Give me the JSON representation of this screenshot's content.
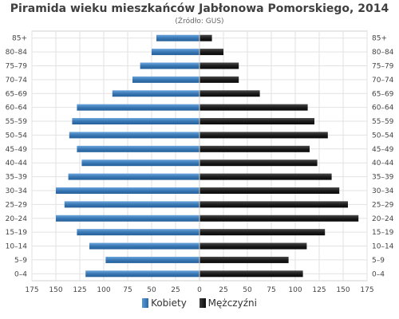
{
  "chart_data": {
    "type": "bar",
    "title": "Piramida wieku mieszkańców Jabłonowa Pomorskiego, 2014",
    "subtitle": "(Źródło: GUS)",
    "categories": [
      "85+",
      "80–84",
      "75–79",
      "70–74",
      "65–69",
      "60–64",
      "55–59",
      "50–54",
      "45–49",
      "40–44",
      "35–39",
      "30–34",
      "25–29",
      "20–24",
      "15–19",
      "10–14",
      "5–9",
      "0–4"
    ],
    "series": [
      {
        "name": "Kobiety",
        "color": "#3a78b4",
        "values": [
          45,
          50,
          62,
          70,
          91,
          128,
          133,
          136,
          128,
          123,
          137,
          150,
          141,
          150,
          128,
          115,
          98,
          119
        ]
      },
      {
        "name": "Mężczyźni",
        "color": "#1c1c1c",
        "values": [
          13,
          25,
          41,
          41,
          63,
          113,
          120,
          134,
          115,
          123,
          138,
          146,
          155,
          166,
          131,
          112,
          93,
          108
        ]
      }
    ],
    "xticks": [
      "175",
      "150",
      "125",
      "100",
      "75",
      "50",
      "25",
      "0",
      "25",
      "50",
      "75",
      "100",
      "125",
      "150",
      "175"
    ],
    "xlim": [
      -175,
      175
    ],
    "grid": true,
    "legend_position": "bottom"
  }
}
